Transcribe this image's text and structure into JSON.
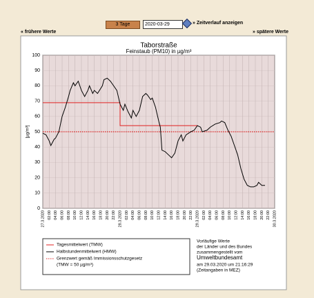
{
  "ui": {
    "period_select": "3 Tage",
    "date": "2020-03-29",
    "show_button": "» Zeitverlauf anzeigen",
    "prev": "« frühere Werte",
    "next": "» spätere Werte"
  },
  "chart_data": {
    "type": "line",
    "title": "Taborstraße",
    "subtitle": "Feinstaub (PM10) in µg/m³",
    "y_label": "[µg/m³]",
    "xlim": [
      0,
      72
    ],
    "ylim": [
      0,
      100
    ],
    "yticks": [
      0,
      10,
      20,
      30,
      40,
      50,
      60,
      70,
      80,
      90,
      100
    ],
    "grid": true,
    "xticks": [
      {
        "value": 0,
        "label": "27.3.2020"
      },
      {
        "value": 2,
        "label": "02:00"
      },
      {
        "value": 4,
        "label": "04:00"
      },
      {
        "value": 6,
        "label": "06:00"
      },
      {
        "value": 8,
        "label": "08:00"
      },
      {
        "value": 10,
        "label": "10:00"
      },
      {
        "value": 12,
        "label": "12:00"
      },
      {
        "value": 14,
        "label": "14:00"
      },
      {
        "value": 16,
        "label": "16:00"
      },
      {
        "value": 18,
        "label": "18:00"
      },
      {
        "value": 20,
        "label": "20:00"
      },
      {
        "value": 22,
        "label": "22:00"
      },
      {
        "value": 24,
        "label": "28.3.2020"
      },
      {
        "value": 26,
        "label": "02:00"
      },
      {
        "value": 28,
        "label": "04:00"
      },
      {
        "value": 30,
        "label": "06:00"
      },
      {
        "value": 32,
        "label": "08:00"
      },
      {
        "value": 34,
        "label": "10:00"
      },
      {
        "value": 36,
        "label": "12:00"
      },
      {
        "value": 38,
        "label": "14:00"
      },
      {
        "value": 40,
        "label": "16:00"
      },
      {
        "value": 42,
        "label": "18:00"
      },
      {
        "value": 44,
        "label": "20:00"
      },
      {
        "value": 46,
        "label": "22:00"
      },
      {
        "value": 48,
        "label": "29.3.2020"
      },
      {
        "value": 50,
        "label": "02:00"
      },
      {
        "value": 52,
        "label": "04:00"
      },
      {
        "value": 54,
        "label": "06:00"
      },
      {
        "value": 56,
        "label": "08:00"
      },
      {
        "value": 58,
        "label": "10:00"
      },
      {
        "value": 60,
        "label": "12:00"
      },
      {
        "value": 62,
        "label": "14:00"
      },
      {
        "value": 64,
        "label": "16:00"
      },
      {
        "value": 66,
        "label": "18:00"
      },
      {
        "value": 68,
        "label": "20:00"
      },
      {
        "value": 70,
        "label": "22:00"
      },
      {
        "value": 72,
        "label": "30.3.2020"
      }
    ],
    "series": [
      {
        "name": "Tagesmittelwert (TMW)",
        "color": "#e02020",
        "x": [
          0,
          24,
          24,
          48
        ],
        "values": [
          69,
          69,
          54,
          54
        ]
      },
      {
        "name": "Halbstundenmittelwert (HMW)",
        "color": "#000000",
        "x": [
          0,
          1,
          2,
          2.5,
          3.5,
          4,
          5,
          6,
          7,
          8,
          8.5,
          9.5,
          10,
          11,
          12,
          13,
          14,
          14.5,
          15.5,
          16,
          17,
          18.5,
          19,
          20,
          21,
          22,
          23,
          24,
          25,
          25.5,
          26.5,
          27.5,
          28,
          29,
          30,
          31,
          32,
          32.5,
          33.5,
          34,
          35,
          36,
          36.5,
          37,
          38,
          39,
          40,
          41,
          42,
          43,
          43.5,
          44.5,
          46,
          47,
          48,
          49,
          49.5,
          51,
          52,
          53.5,
          55,
          55.5,
          56.5,
          57.5,
          58.5,
          59.5,
          60.5,
          61.5,
          62.5,
          63.5,
          64.5,
          65.5,
          66.5,
          67,
          68,
          69
        ],
        "values": [
          49,
          48,
          44,
          41,
          45,
          46,
          50,
          60,
          66,
          73,
          77,
          82,
          80,
          83,
          77,
          73,
          77,
          80,
          75,
          77,
          75,
          80,
          84,
          85,
          83,
          80,
          77,
          68,
          64,
          68,
          63,
          59,
          64,
          60,
          64,
          73,
          75,
          74,
          71,
          72,
          66,
          57,
          53,
          38,
          37,
          35,
          33,
          36,
          44,
          48,
          44,
          48,
          50,
          51,
          54,
          53,
          50,
          51,
          53,
          55,
          56,
          57,
          56,
          51,
          47,
          41,
          35,
          26,
          19,
          15,
          14,
          14,
          15,
          17,
          15,
          15
        ]
      }
    ],
    "limit": {
      "name": "Grenzwert gemäß Immissionsschutzgesetz",
      "note": "(TMW = 50 µg/m³)",
      "value": 50,
      "color": "#e02020"
    },
    "info": [
      "Vorläufige Werte",
      "der Länder und des Bundes",
      "zusammengestellt vom",
      "Umweltbundesamt",
      "am 29.03.2020 um 21:16:29",
      "(Zeitangaben in MEZ)"
    ]
  }
}
